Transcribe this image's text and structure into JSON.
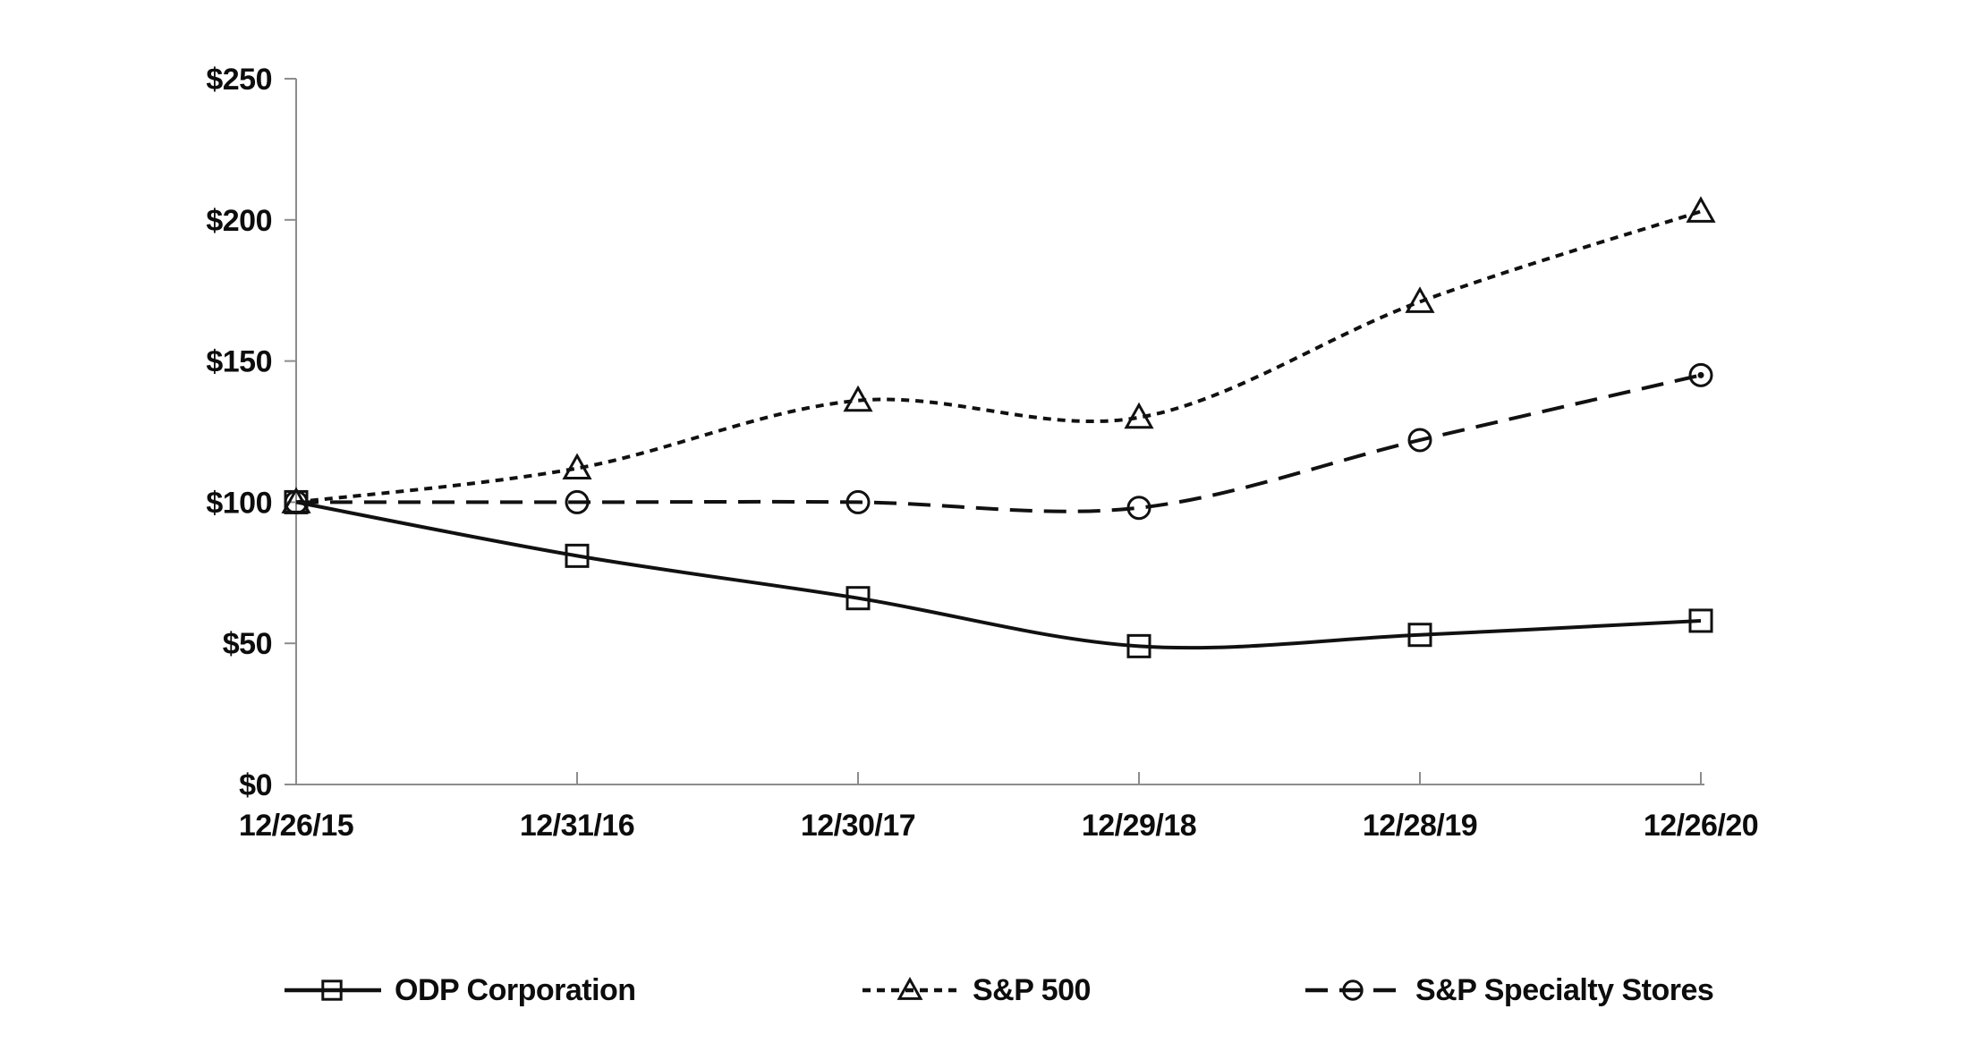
{
  "chart_data": {
    "type": "line",
    "title": "",
    "xlabel": "",
    "ylabel": "",
    "x_labels": [
      "12/26/15",
      "12/31/16",
      "12/30/17",
      "12/29/18",
      "12/28/19",
      "12/26/20"
    ],
    "y_tick_values": [
      0,
      50,
      100,
      150,
      200,
      250
    ],
    "y_tick_labels": [
      "$0",
      "$50",
      "$100",
      "$150",
      "$200",
      "$250"
    ],
    "ylim": [
      0,
      250
    ],
    "grid": false,
    "legend_position": "bottom",
    "axis_color": "#8c8c8c",
    "series_color": "#111111",
    "text_color": "#0d0d0d",
    "series": [
      {
        "name": "ODP Corporation",
        "marker": "square",
        "line_style": "solid",
        "values": [
          100,
          81,
          66,
          49,
          53,
          58
        ]
      },
      {
        "name": "S&P 500",
        "marker": "triangle",
        "line_style": "dotted",
        "values": [
          100,
          112,
          136,
          130,
          171,
          203
        ]
      },
      {
        "name": "S&P Specialty Stores",
        "marker": "circle",
        "line_style": "long-dash",
        "values": [
          100,
          100,
          100,
          98,
          122,
          145
        ]
      }
    ]
  }
}
